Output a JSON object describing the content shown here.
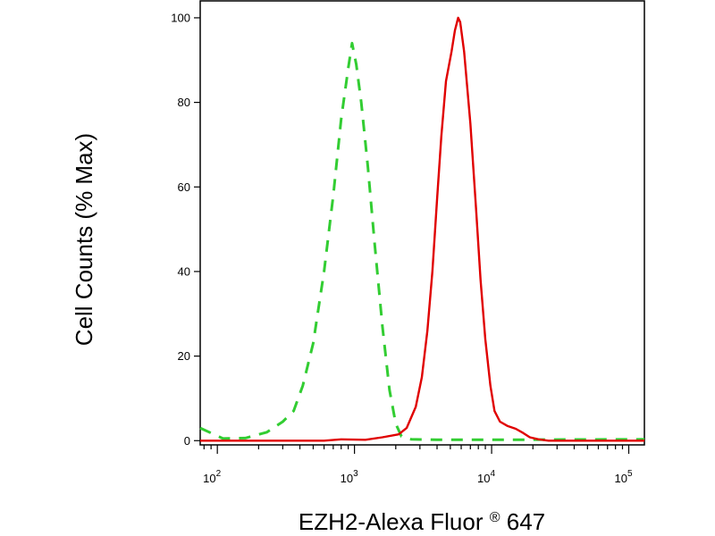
{
  "chart_data": {
    "type": "line",
    "xlabel_main": "EZH2-Alexa Fluor",
    "xlabel_reg": "®",
    "xlabel_tail": " 647",
    "ylabel": "Cell Counts (% Max)",
    "x_scale": "log",
    "xlim": [
      75,
      130000
    ],
    "ylim": [
      -1,
      104
    ],
    "grid": false,
    "y_ticks": [
      {
        "value": 0,
        "label": "0"
      },
      {
        "value": 20,
        "label": "20"
      },
      {
        "value": 40,
        "label": "40"
      },
      {
        "value": 60,
        "label": "60"
      },
      {
        "value": 80,
        "label": "80"
      },
      {
        "value": 100,
        "label": "100"
      }
    ],
    "x_ticks": [
      {
        "value": 100,
        "base": "10",
        "exp": "2"
      },
      {
        "value": 1000,
        "base": "10",
        "exp": "3"
      },
      {
        "value": 10000,
        "base": "10",
        "exp": "4"
      },
      {
        "value": 100000,
        "base": "10",
        "exp": "5"
      }
    ],
    "series": [
      {
        "color": "#32cd32",
        "style": "dashed",
        "points": [
          [
            75,
            3
          ],
          [
            110,
            0.5
          ],
          [
            160,
            0.6
          ],
          [
            230,
            2
          ],
          [
            300,
            4.5
          ],
          [
            360,
            7
          ],
          [
            420,
            13
          ],
          [
            500,
            23
          ],
          [
            600,
            40
          ],
          [
            700,
            58
          ],
          [
            800,
            76
          ],
          [
            900,
            88
          ],
          [
            960,
            94
          ],
          [
            1030,
            89
          ],
          [
            1120,
            80
          ],
          [
            1250,
            65
          ],
          [
            1400,
            47
          ],
          [
            1600,
            27
          ],
          [
            1800,
            12
          ],
          [
            2000,
            4
          ],
          [
            2200,
            1
          ],
          [
            2600,
            0.3
          ],
          [
            4000,
            0.2
          ],
          [
            10000,
            0.2
          ],
          [
            130000,
            0.3
          ]
        ]
      },
      {
        "color": "#e00000",
        "style": "solid",
        "points": [
          [
            75,
            0
          ],
          [
            600,
            0
          ],
          [
            800,
            0.3
          ],
          [
            1200,
            0.2
          ],
          [
            1600,
            0.8
          ],
          [
            2100,
            1.5
          ],
          [
            2400,
            3
          ],
          [
            2800,
            8
          ],
          [
            3100,
            15
          ],
          [
            3400,
            26
          ],
          [
            3700,
            40
          ],
          [
            4000,
            57
          ],
          [
            4300,
            72
          ],
          [
            4650,
            85
          ],
          [
            5100,
            92
          ],
          [
            5400,
            97
          ],
          [
            5700,
            100
          ],
          [
            5900,
            99
          ],
          [
            6300,
            92
          ],
          [
            7000,
            75
          ],
          [
            7700,
            55
          ],
          [
            8300,
            38
          ],
          [
            9000,
            24
          ],
          [
            9800,
            13
          ],
          [
            10500,
            7
          ],
          [
            11500,
            4.5
          ],
          [
            13000,
            3.5
          ],
          [
            15000,
            2.8
          ],
          [
            17000,
            1.8
          ],
          [
            19000,
            0.8
          ],
          [
            22000,
            0.3
          ],
          [
            26000,
            0
          ],
          [
            130000,
            0
          ]
        ]
      }
    ]
  }
}
